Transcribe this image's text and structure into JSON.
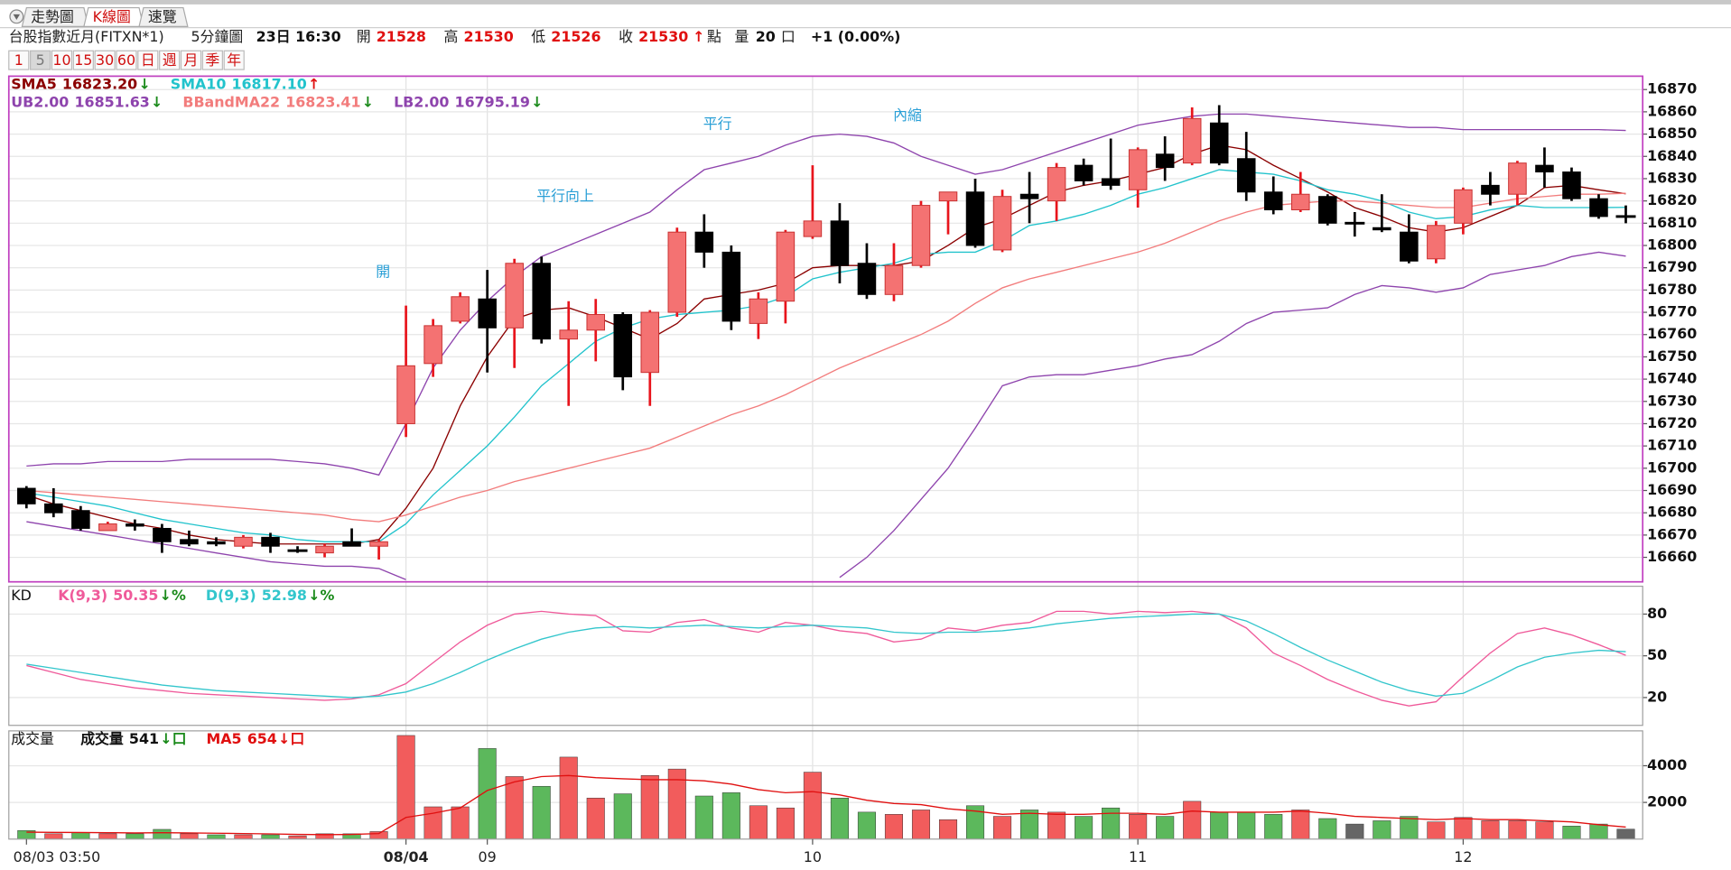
{
  "toolbar": {
    "tabs": [
      "走勢圖",
      "K線圖",
      "速覽"
    ],
    "symbol": "台股指數近月(FITXN*1)",
    "interval": "5分鐘圖",
    "time": "23日 16:30",
    "quote": [
      {
        "label": "開",
        "value": "21528"
      },
      {
        "label": "高",
        "value": "21530"
      },
      {
        "label": "低",
        "value": "21526"
      },
      {
        "label": "收",
        "value": "21530",
        "arrow": "↑",
        "unit": "點"
      }
    ],
    "volume": {
      "label": "量",
      "value": "20",
      "unit": "口"
    },
    "change": "+1 (0.00%)",
    "periods": [
      "1",
      "5",
      "10",
      "15",
      "30",
      "60",
      "日",
      "週",
      "月",
      "季",
      "年"
    ]
  },
  "chart_data": [
    {
      "type": "candlestick",
      "up_color": "#f47272",
      "up_border": "#c83030",
      "up_wick": "#e8141c",
      "down_color": "#000000",
      "grid": true,
      "ylim": [
        16649,
        16876
      ],
      "yticks": [
        16660,
        16670,
        16680,
        16690,
        16700,
        16710,
        16720,
        16730,
        16740,
        16750,
        16760,
        16770,
        16780,
        16790,
        16800,
        16810,
        16820,
        16830,
        16840,
        16850,
        16860,
        16870
      ],
      "annotations": [
        "開",
        "平行向上",
        "平行",
        "內縮"
      ],
      "annotation_color": "#2a9fd6",
      "open": [
        16691,
        16684,
        16681,
        16672,
        16675,
        16673,
        16668,
        16667,
        16665,
        16669,
        16663,
        16662,
        16667,
        16665,
        16720,
        16747,
        16766,
        16776,
        16763,
        16792,
        16758,
        16762,
        16769,
        16743,
        16770,
        16806,
        16797,
        16765,
        16775,
        16804,
        16811,
        16792,
        16778,
        16791,
        16820,
        16824,
        16798,
        16823,
        16820,
        16836,
        16830,
        16825,
        16841,
        16837,
        16855,
        16839,
        16824,
        16816,
        16822,
        16810,
        16808,
        16806,
        16794,
        16810,
        16827,
        16823,
        16836,
        16833,
        16821,
        16813
      ],
      "high": [
        16692,
        16691,
        16683,
        16676,
        16677,
        16675,
        16672,
        16669,
        16670,
        16671,
        16665,
        16666,
        16673,
        16668,
        16773,
        16767,
        16779,
        16789,
        16794,
        16795,
        16775,
        16776,
        16770,
        16771,
        16808,
        16814,
        16800,
        16779,
        16807,
        16836,
        16819,
        16801,
        16801,
        16820,
        16824,
        16830,
        16825,
        16833,
        16837,
        16839,
        16848,
        16844,
        16849,
        16862,
        16863,
        16851,
        16831,
        16833,
        16823,
        16815,
        16823,
        16814,
        16811,
        16826,
        16833,
        16838,
        16844,
        16835,
        16823,
        16818
      ],
      "low": [
        16682,
        16678,
        16672,
        16672,
        16672,
        16662,
        16665,
        16665,
        16664,
        16662,
        16662,
        16660,
        16665,
        16659,
        16714,
        16741,
        16765,
        16743,
        16745,
        16756,
        16728,
        16748,
        16735,
        16728,
        16768,
        16790,
        16762,
        16758,
        16765,
        16803,
        16783,
        16776,
        16775,
        16790,
        16805,
        16799,
        16797,
        16810,
        16811,
        16827,
        16825,
        16817,
        16829,
        16836,
        16836,
        16820,
        16814,
        16815,
        16809,
        16804,
        16806,
        16792,
        16792,
        16805,
        16818,
        16818,
        16826,
        16820,
        16812,
        16810
      ],
      "close": [
        16684,
        16680,
        16673,
        16675,
        16674,
        16667,
        16666,
        16666,
        16669,
        16665,
        16663,
        16665,
        16665,
        16667,
        16746,
        16764,
        16777,
        16763,
        16792,
        16758,
        16762,
        16769,
        16741,
        16770,
        16806,
        16797,
        16766,
        16776,
        16806,
        16811,
        16791,
        16778,
        16791,
        16818,
        16824,
        16800,
        16822,
        16821,
        16835,
        16829,
        16827,
        16843,
        16835,
        16857,
        16837,
        16824,
        16816,
        16823,
        16810,
        16810,
        16807,
        16793,
        16809,
        16825,
        16823,
        16837,
        16833,
        16821,
        16813,
        16813
      ],
      "series": [
        {
          "name": "SMA5",
          "label_value": "16823.20",
          "arrow": "↓",
          "arrow_color": "#1a8a1a",
          "color": "#8b0000",
          "values": [
            16688,
            16684,
            16681,
            16678,
            16675,
            16673,
            16670,
            16668,
            16667,
            16666,
            16666,
            16666,
            16666,
            16668,
            16682,
            16700,
            16728,
            16750,
            16767,
            16771,
            16772,
            16768,
            16763,
            16758,
            16765,
            16776,
            16778,
            16780,
            16783,
            16790,
            16791,
            16791,
            16791,
            16793,
            16800,
            16808,
            16812,
            16818,
            16824,
            16827,
            16829,
            16832,
            16835,
            16841,
            16845,
            16843,
            16836,
            16830,
            16824,
            16817,
            16813,
            16808,
            16806,
            16808,
            16813,
            16818,
            16826,
            16827,
            16825,
            16823.2
          ]
        },
        {
          "name": "SMA10",
          "label_value": "16817.10",
          "arrow": "↑",
          "arrow_color": "#e01010",
          "color": "#22c3cc",
          "values": [
            16689,
            16687,
            16685,
            16683,
            16680,
            16677,
            16675,
            16673,
            16671,
            16670,
            16668,
            16667,
            16667,
            16667,
            16675,
            16688,
            16699,
            16710,
            16723,
            16737,
            16747,
            16757,
            16763,
            16767,
            16769,
            16770,
            16771,
            16773,
            16777,
            16785,
            16788,
            16790,
            16792,
            16796,
            16797,
            16797,
            16802,
            16809,
            16811,
            16814,
            16818,
            16823,
            16826,
            16830,
            16834,
            16833,
            16832,
            16829,
            16825,
            16823,
            16820,
            16815,
            16812,
            16813,
            16816,
            16818,
            16817,
            16817,
            16817,
            16817.1
          ]
        },
        {
          "name": "UB2.00",
          "label_value": "16851.63",
          "arrow": "↓",
          "arrow_color": "#1a8a1a",
          "color": "#8e44ad",
          "values": [
            16701,
            16702,
            16702,
            16703,
            16703,
            16703,
            16704,
            16704,
            16704,
            16704,
            16703,
            16702,
            16700,
            16697,
            16720,
            16745,
            16762,
            16775,
            16786,
            16795,
            16800,
            16805,
            16810,
            16815,
            16825,
            16834,
            16837,
            16840,
            16845,
            16849,
            16850,
            16849,
            16846,
            16840,
            16836,
            16832,
            16834,
            16838,
            16842,
            16846,
            16850,
            16854,
            16856,
            16858,
            16859,
            16859,
            16858,
            16857,
            16856,
            16855,
            16854,
            16853,
            16853,
            16852,
            16852,
            16852,
            16852,
            16852,
            16852,
            16851.63
          ]
        },
        {
          "name": "BBandMA22",
          "label_value": "16823.41",
          "arrow": "↓",
          "arrow_color": "#1a8a1a",
          "color": "#f27c7c",
          "values": [
            16690,
            16689,
            16688,
            16687,
            16686,
            16685,
            16684,
            16683,
            16682,
            16681,
            16680,
            16679,
            16677,
            16676,
            16679,
            16683,
            16687,
            16690,
            16694,
            16697,
            16700,
            16703,
            16706,
            16709,
            16714,
            16719,
            16724,
            16728,
            16733,
            16739,
            16745,
            16750,
            16755,
            16760,
            16766,
            16774,
            16781,
            16785,
            16788,
            16791,
            16794,
            16797,
            16801,
            16806,
            16811,
            16815,
            16818,
            16819,
            16820,
            16820,
            16819,
            16818,
            16817,
            16817,
            16819,
            16821,
            16822,
            16823,
            16823,
            16823.41
          ]
        },
        {
          "name": "LB2.00",
          "label_value": "16795.19",
          "arrow": "↓",
          "arrow_color": "#1a8a1a",
          "color": "#8e44ad",
          "values": [
            16676,
            16674,
            16672,
            16670,
            16668,
            16666,
            16664,
            16662,
            16660,
            16658,
            16657,
            16656,
            16656,
            16655,
            16650,
            null,
            null,
            null,
            null,
            null,
            null,
            null,
            null,
            null,
            null,
            null,
            null,
            null,
            null,
            null,
            16651,
            16660,
            16672,
            16686,
            16700,
            16718,
            16737,
            16741,
            16742,
            16742,
            16744,
            16746,
            16749,
            16751,
            16757,
            16765,
            16770,
            16771,
            16772,
            16778,
            16782,
            16781,
            16779,
            16781,
            16787,
            16789,
            16791,
            16795,
            16797,
            16795.19
          ]
        }
      ]
    },
    {
      "type": "line",
      "title": "KD",
      "grid": true,
      "ylim": [
        0,
        100
      ],
      "yticks": [
        20,
        50,
        80
      ],
      "series": [
        {
          "name": "K(9,3)",
          "label_value": "50.35",
          "arrow": "↓%",
          "arrow_color": "#1a8a1a",
          "color": "#ef5a9a",
          "values": [
            43,
            38,
            33,
            30,
            27,
            25,
            23,
            22,
            21,
            20,
            19,
            18,
            19,
            22,
            30,
            45,
            60,
            72,
            80,
            82,
            80,
            79,
            68,
            67,
            74,
            76,
            70,
            67,
            74,
            72,
            68,
            66,
            60,
            62,
            70,
            68,
            72,
            74,
            82,
            82,
            80,
            82,
            81,
            82,
            80,
            70,
            52,
            43,
            33,
            25,
            18,
            14,
            17,
            35,
            52,
            66,
            70,
            65,
            58,
            50.35
          ]
        },
        {
          "name": "D(9,3)",
          "label_value": "52.98",
          "arrow": "↓%",
          "arrow_color": "#1a8a1a",
          "color": "#33c6cc",
          "values": [
            44,
            41,
            38,
            35,
            32,
            29,
            27,
            25,
            24,
            23,
            22,
            21,
            20,
            21,
            24,
            30,
            38,
            47,
            55,
            62,
            67,
            70,
            71,
            70,
            71,
            72,
            71,
            70,
            71,
            72,
            71,
            70,
            67,
            66,
            67,
            67,
            68,
            70,
            73,
            75,
            77,
            78,
            79,
            80,
            80,
            75,
            66,
            56,
            47,
            39,
            31,
            25,
            21,
            23,
            32,
            42,
            49,
            52,
            54,
            52.98
          ]
        }
      ]
    },
    {
      "type": "bar",
      "title": "成交量",
      "grid": true,
      "ylim": [
        0,
        5900
      ],
      "yticks": [
        2000,
        4000
      ],
      "categories": [
        "08/03 03:50",
        null,
        null,
        null,
        null,
        null,
        null,
        null,
        null,
        null,
        null,
        null,
        null,
        null,
        "08/04",
        null,
        null,
        "09",
        null,
        null,
        null,
        null,
        null,
        null,
        null,
        null,
        null,
        null,
        null,
        "10",
        null,
        null,
        null,
        null,
        null,
        null,
        null,
        null,
        null,
        null,
        null,
        "11",
        null,
        null,
        null,
        null,
        null,
        null,
        null,
        null,
        null,
        null,
        null,
        "12",
        null,
        null,
        null,
        null,
        null,
        null
      ],
      "series": [
        {
          "name": "成交量",
          "label_value": "541",
          "arrow": "↓口",
          "arrow_color": "#1a8a1a",
          "color": "#111111",
          "values": [
            470,
            290,
            350,
            290,
            290,
            530,
            290,
            235,
            235,
            235,
            176,
            290,
            290,
            410,
            5650,
            1760,
            1760,
            4940,
            3410,
            2880,
            4470,
            2240,
            2470,
            3470,
            3820,
            2350,
            2530,
            1820,
            1700,
            3650,
            2240,
            1470,
            1350,
            1590,
            1060,
            1820,
            1240,
            1590,
            1470,
            1240,
            1700,
            1350,
            1240,
            2060,
            1470,
            1470,
            1350,
            1590,
            1120,
            820,
            1000,
            1240,
            940,
            1180,
            1000,
            1000,
            940,
            710,
            820,
            541
          ],
          "colors": [
            "#5cb85c",
            "#f25c5c",
            "#5cb85c",
            "#f25c5c",
            "#5cb85c",
            "#5cb85c",
            "#f25c5c",
            "#5cb85c",
            "#f25c5c",
            "#5cb85c",
            "#f25c5c",
            "#f25c5c",
            "#5cb85c",
            "#f25c5c",
            "#f25c5c",
            "#f25c5c",
            "#f25c5c",
            "#5cb85c",
            "#f25c5c",
            "#5cb85c",
            "#f25c5c",
            "#f25c5c",
            "#5cb85c",
            "#f25c5c",
            "#f25c5c",
            "#5cb85c",
            "#5cb85c",
            "#f25c5c",
            "#f25c5c",
            "#f25c5c",
            "#5cb85c",
            "#5cb85c",
            "#f25c5c",
            "#f25c5c",
            "#f25c5c",
            "#5cb85c",
            "#f25c5c",
            "#5cb85c",
            "#f25c5c",
            "#5cb85c",
            "#5cb85c",
            "#f25c5c",
            "#5cb85c",
            "#f25c5c",
            "#5cb85c",
            "#5cb85c",
            "#5cb85c",
            "#f25c5c",
            "#5cb85c",
            "#666666",
            "#5cb85c",
            "#5cb85c",
            "#f25c5c",
            "#f25c5c",
            "#f25c5c",
            "#f25c5c",
            "#f25c5c",
            "#5cb85c",
            "#5cb85c",
            "#666666"
          ]
        },
        {
          "name": "MA5",
          "label_value": "654",
          "arrow": "↓口",
          "arrow_color": "#e01010",
          "color": "#e01010",
          "line": true,
          "values": [
            380,
            370,
            360,
            350,
            340,
            350,
            340,
            320,
            300,
            280,
            250,
            240,
            250,
            300,
            1180,
            1410,
            1700,
            2650,
            3120,
            3410,
            3470,
            3350,
            3290,
            3240,
            3240,
            3180,
            3000,
            2700,
            2530,
            2590,
            2410,
            2120,
            1940,
            1880,
            1650,
            1530,
            1350,
            1410,
            1350,
            1350,
            1410,
            1410,
            1350,
            1530,
            1470,
            1470,
            1470,
            1530,
            1410,
            1240,
            1180,
            1120,
            1060,
            1120,
            1060,
            1060,
            1000,
            940,
            780,
            654
          ]
        }
      ]
    }
  ]
}
